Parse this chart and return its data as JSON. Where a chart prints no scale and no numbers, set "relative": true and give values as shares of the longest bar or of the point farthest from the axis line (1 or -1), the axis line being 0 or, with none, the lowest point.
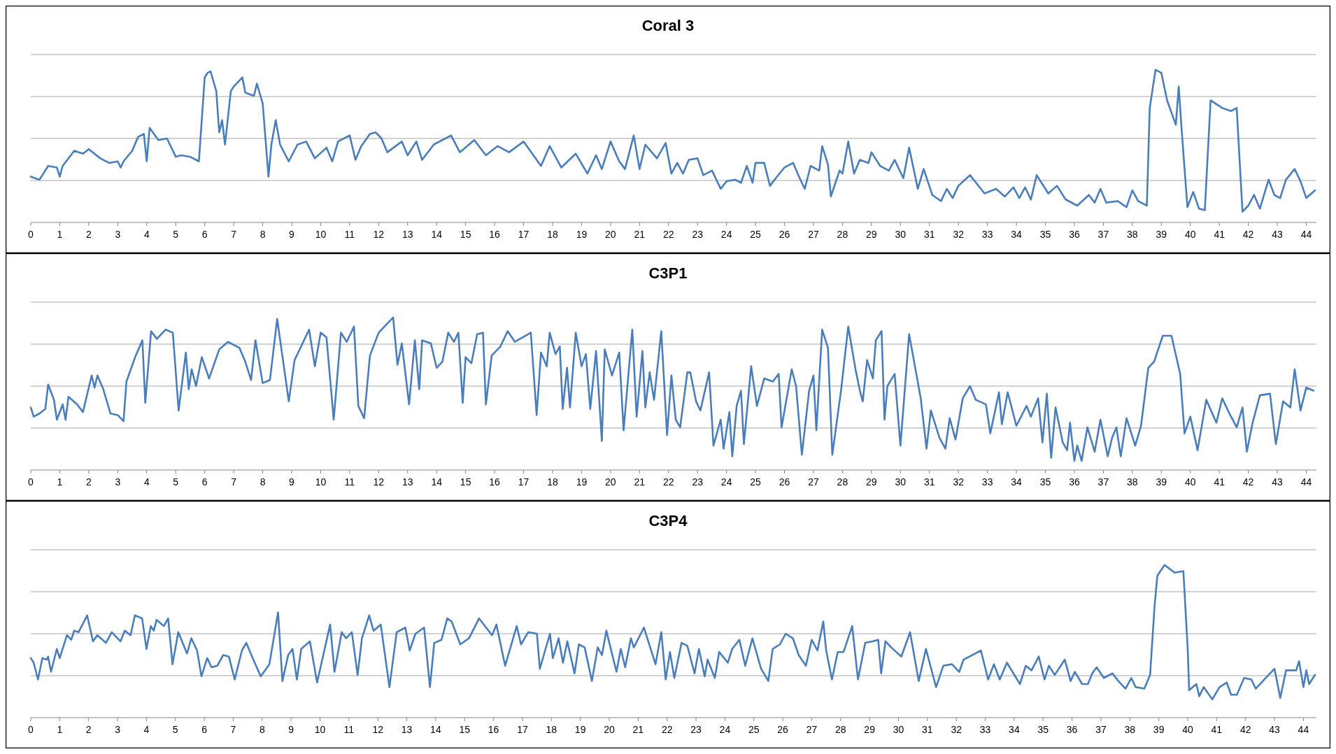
{
  "chart_data": [
    {
      "type": "line",
      "title": "Coral 3",
      "relative": true,
      "grid": "y",
      "color": "#4a7ebb",
      "xlim": [
        0,
        44.35
      ],
      "xticks": [
        0,
        1,
        2,
        3,
        4,
        5,
        6,
        7,
        8,
        9,
        10,
        11,
        12,
        13,
        14,
        15,
        16,
        17,
        18,
        19,
        20,
        21,
        22,
        23,
        24,
        25,
        26,
        27,
        28,
        29,
        30,
        31,
        32,
        33,
        34,
        35,
        36,
        37,
        38,
        39,
        40,
        41,
        42,
        43,
        44
      ],
      "x": [
        0,
        0.3,
        0.6,
        0.9,
        1.0,
        1.1,
        1.5,
        1.8,
        2.0,
        2.4,
        2.7,
        3.0,
        3.1,
        3.2,
        3.5,
        3.7,
        3.9,
        4.0,
        4.1,
        4.4,
        4.7,
        5.0,
        5.2,
        5.5,
        5.8,
        6.0,
        6.1,
        6.2,
        6.4,
        6.5,
        6.6,
        6.7,
        6.9,
        7.0,
        7.3,
        7.4,
        7.7,
        7.8,
        8.0,
        8.2,
        8.3,
        8.45,
        8.6,
        8.9,
        9.2,
        9.5,
        9.8,
        10.2,
        10.4,
        10.6,
        11.0,
        11.2,
        11.4,
        11.7,
        11.9,
        12.1,
        12.3,
        12.8,
        13.0,
        13.3,
        13.5,
        13.9,
        14.5,
        14.8,
        15.3,
        15.7,
        16.1,
        16.5,
        17.0,
        17.6,
        17.9,
        18.3,
        18.8,
        19.2,
        19.5,
        19.7,
        20.0,
        20.3,
        20.5,
        20.8,
        21.0,
        21.2,
        21.6,
        21.9,
        22.1,
        22.3,
        22.5,
        22.7,
        23.0,
        23.2,
        23.5,
        23.8,
        24.0,
        24.3,
        24.5,
        24.7,
        24.9,
        25.0,
        25.3,
        25.5,
        25.7,
        26.0,
        26.3,
        26.5,
        26.7,
        26.9,
        27.2,
        27.3,
        27.5,
        27.6,
        27.9,
        28.0,
        28.2,
        28.4,
        28.6,
        28.9,
        29.0,
        29.3,
        29.6,
        29.8,
        30.1,
        30.3,
        30.6,
        30.8,
        31.1,
        31.4,
        31.6,
        31.8,
        32.0,
        32.4,
        32.9,
        33.3,
        33.6,
        33.9,
        34.1,
        34.3,
        34.5,
        34.7,
        35.1,
        35.4,
        35.7,
        36.1,
        36.5,
        36.7,
        36.9,
        37.1,
        37.5,
        37.8,
        38.0,
        38.2,
        38.5,
        38.6,
        38.8,
        39.0,
        39.2,
        39.5,
        39.6,
        39.7,
        39.9,
        40.1,
        40.3,
        40.5,
        40.7,
        41.1,
        41.4,
        41.6,
        41.8,
        42.0,
        42.2,
        42.4,
        42.7,
        42.9,
        43.1,
        43.3,
        43.6,
        43.8,
        44.0,
        44.3
      ],
      "values": [
        0.3,
        0.28,
        0.37,
        0.36,
        0.3,
        0.37,
        0.47,
        0.45,
        0.48,
        0.42,
        0.39,
        0.4,
        0.36,
        0.4,
        0.47,
        0.56,
        0.58,
        0.4,
        0.62,
        0.54,
        0.55,
        0.43,
        0.44,
        0.43,
        0.4,
        0.95,
        0.98,
        0.99,
        0.86,
        0.59,
        0.67,
        0.51,
        0.86,
        0.89,
        0.95,
        0.85,
        0.83,
        0.91,
        0.78,
        0.3,
        0.51,
        0.67,
        0.51,
        0.4,
        0.51,
        0.53,
        0.42,
        0.49,
        0.4,
        0.53,
        0.57,
        0.41,
        0.5,
        0.58,
        0.59,
        0.55,
        0.46,
        0.53,
        0.44,
        0.53,
        0.41,
        0.51,
        0.57,
        0.46,
        0.54,
        0.44,
        0.5,
        0.46,
        0.53,
        0.37,
        0.5,
        0.36,
        0.45,
        0.32,
        0.44,
        0.35,
        0.53,
        0.4,
        0.35,
        0.57,
        0.35,
        0.51,
        0.42,
        0.52,
        0.32,
        0.39,
        0.32,
        0.41,
        0.42,
        0.31,
        0.34,
        0.22,
        0.27,
        0.28,
        0.26,
        0.37,
        0.26,
        0.39,
        0.39,
        0.24,
        0.29,
        0.36,
        0.39,
        0.3,
        0.22,
        0.37,
        0.34,
        0.5,
        0.38,
        0.17,
        0.34,
        0.32,
        0.53,
        0.32,
        0.41,
        0.39,
        0.46,
        0.37,
        0.34,
        0.41,
        0.29,
        0.49,
        0.22,
        0.35,
        0.18,
        0.14,
        0.22,
        0.16,
        0.24,
        0.31,
        0.19,
        0.22,
        0.17,
        0.23,
        0.16,
        0.23,
        0.15,
        0.31,
        0.19,
        0.24,
        0.15,
        0.11,
        0.18,
        0.13,
        0.22,
        0.13,
        0.14,
        0.1,
        0.21,
        0.14,
        0.11,
        0.75,
        1,
        0.98,
        0.8,
        0.64,
        0.89,
        0.61,
        0.1,
        0.2,
        0.09,
        0.08,
        0.8,
        0.75,
        0.73,
        0.75,
        0.07,
        0.11,
        0.18,
        0.09,
        0.28,
        0.18,
        0.16,
        0.28,
        0.35,
        0.27,
        0.16,
        0.21
      ]
    },
    {
      "type": "line",
      "title": "C3P1",
      "relative": true,
      "grid": "y",
      "color": "#4a7ebb",
      "xlim": [
        0,
        44.35
      ],
      "xticks": [
        0,
        1,
        2,
        3,
        4,
        5,
        6,
        7,
        8,
        9,
        10,
        11,
        12,
        13,
        14,
        15,
        16,
        17,
        18,
        19,
        20,
        21,
        22,
        23,
        24,
        25,
        26,
        27,
        28,
        29,
        30,
        31,
        32,
        33,
        34,
        35,
        36,
        37,
        38,
        39,
        40,
        41,
        42,
        43,
        44
      ],
      "x": [
        0,
        0.1,
        0.3,
        0.5,
        0.6,
        0.8,
        0.9,
        1.1,
        1.2,
        1.3,
        1.6,
        1.8,
        2.1,
        2.2,
        2.3,
        2.5,
        2.75,
        3.0,
        3.2,
        3.3,
        3.6,
        3.85,
        3.95,
        4.15,
        4.35,
        4.65,
        4.9,
        5.1,
        5.35,
        5.45,
        5.55,
        5.7,
        5.9,
        6.15,
        6.5,
        6.8,
        7.2,
        7.4,
        7.6,
        7.75,
        8.0,
        8.25,
        8.5,
        8.9,
        9.1,
        9.6,
        9.8,
        10.0,
        10.2,
        10.45,
        10.7,
        10.9,
        11.15,
        11.3,
        11.5,
        11.7,
        12.0,
        12.5,
        12.65,
        12.8,
        13.05,
        13.25,
        13.4,
        13.5,
        13.8,
        14.0,
        14.2,
        14.4,
        14.6,
        14.75,
        14.9,
        15.0,
        15.2,
        15.4,
        15.6,
        15.7,
        15.9,
        16.2,
        16.45,
        16.7,
        17.25,
        17.45,
        17.6,
        17.8,
        17.9,
        18.1,
        18.25,
        18.35,
        18.5,
        18.6,
        18.8,
        19.0,
        19.15,
        19.3,
        19.5,
        19.7,
        19.8,
        20.05,
        20.3,
        20.45,
        20.75,
        20.9,
        21.1,
        21.2,
        21.35,
        21.5,
        21.75,
        21.95,
        22.1,
        22.25,
        22.4,
        22.65,
        22.75,
        22.95,
        23.1,
        23.4,
        23.55,
        23.8,
        23.9,
        24.1,
        24.2,
        24.35,
        24.5,
        24.6,
        24.85,
        25.05,
        25.3,
        25.6,
        25.8,
        25.9,
        26.25,
        26.4,
        26.6,
        26.85,
        27.0,
        27.1,
        27.3,
        27.5,
        27.65,
        27.95,
        28.2,
        28.45,
        28.6,
        28.7,
        28.85,
        29.05,
        29.15,
        29.35,
        29.45,
        29.55,
        29.8,
        30.0,
        30.3,
        30.5,
        30.7,
        30.9,
        31.05,
        31.35,
        31.55,
        31.7,
        31.9,
        32.15,
        32.4,
        32.6,
        32.95,
        33.1,
        33.4,
        33.5,
        33.7,
        34.0,
        34.35,
        34.5,
        34.75,
        34.9,
        35.05,
        35.2,
        35.35,
        35.6,
        35.75,
        35.85,
        36.0,
        36.1,
        36.25,
        36.45,
        36.7,
        36.9,
        37.15,
        37.3,
        37.45,
        37.6,
        37.8,
        38.1,
        38.3,
        38.55,
        38.75,
        39.05,
        39.35,
        39.65,
        39.8,
        40.0,
        40.25,
        40.55,
        40.9,
        41.1,
        41.35,
        41.6,
        41.8,
        41.95,
        42.15,
        42.4,
        42.75,
        42.95,
        43.2,
        43.45,
        43.6,
        43.8,
        44.0,
        44.25
      ],
      "values": [
        0.41,
        0.35,
        0.37,
        0.4,
        0.56,
        0.46,
        0.33,
        0.43,
        0.33,
        0.48,
        0.43,
        0.38,
        0.62,
        0.54,
        0.62,
        0.53,
        0.37,
        0.36,
        0.32,
        0.58,
        0.74,
        0.85,
        0.44,
        0.91,
        0.86,
        0.92,
        0.9,
        0.39,
        0.77,
        0.53,
        0.66,
        0.55,
        0.74,
        0.6,
        0.79,
        0.84,
        0.8,
        0.71,
        0.59,
        0.85,
        0.57,
        0.59,
        0.99,
        0.45,
        0.72,
        0.92,
        0.68,
        0.9,
        0.87,
        0.33,
        0.9,
        0.84,
        0.94,
        0.42,
        0.34,
        0.75,
        0.9,
        1,
        0.69,
        0.83,
        0.43,
        0.85,
        0.53,
        0.85,
        0.83,
        0.67,
        0.71,
        0.9,
        0.84,
        0.9,
        0.44,
        0.74,
        0.7,
        0.89,
        0.9,
        0.43,
        0.75,
        0.81,
        0.91,
        0.84,
        0.9,
        0.36,
        0.77,
        0.68,
        0.9,
        0.76,
        0.81,
        0.4,
        0.67,
        0.41,
        0.9,
        0.68,
        0.76,
        0.4,
        0.78,
        0.19,
        0.79,
        0.62,
        0.77,
        0.26,
        0.92,
        0.35,
        0.78,
        0.41,
        0.64,
        0.46,
        0.91,
        0.23,
        0.62,
        0.33,
        0.28,
        0.64,
        0.64,
        0.45,
        0.39,
        0.64,
        0.16,
        0.33,
        0.14,
        0.38,
        0.09,
        0.42,
        0.52,
        0.17,
        0.68,
        0.42,
        0.6,
        0.58,
        0.63,
        0.28,
        0.66,
        0.55,
        0.1,
        0.52,
        0.62,
        0.26,
        0.92,
        0.8,
        0.1,
        0.52,
        0.94,
        0.66,
        0.52,
        0.45,
        0.72,
        0.6,
        0.85,
        0.91,
        0.33,
        0.55,
        0.63,
        0.16,
        0.89,
        0.68,
        0.47,
        0.14,
        0.39,
        0.21,
        0.14,
        0.34,
        0.2,
        0.47,
        0.55,
        0.46,
        0.43,
        0.24,
        0.51,
        0.3,
        0.51,
        0.29,
        0.42,
        0.35,
        0.47,
        0.18,
        0.5,
        0.08,
        0.41,
        0.18,
        0.13,
        0.31,
        0.06,
        0.16,
        0.06,
        0.28,
        0.12,
        0.33,
        0.09,
        0.21,
        0.28,
        0.09,
        0.34,
        0.16,
        0.29,
        0.67,
        0.71,
        0.88,
        0.88,
        0.63,
        0.24,
        0.35,
        0.13,
        0.46,
        0.31,
        0.47,
        0.37,
        0.28,
        0.41,
        0.12,
        0.31,
        0.49,
        0.5,
        0.17,
        0.45,
        0.41,
        0.66,
        0.39,
        0.54,
        0.52
      ]
    },
    {
      "type": "line",
      "title": "C3P4",
      "relative": true,
      "grid": "y",
      "color": "#4a7ebb",
      "xlim": [
        0,
        44.45
      ],
      "xticks": [
        0,
        1,
        2,
        3,
        4,
        5,
        6,
        7,
        8,
        9,
        10,
        11,
        12,
        13,
        14,
        15,
        16,
        17,
        18,
        19,
        20,
        21,
        22,
        23,
        24,
        25,
        26,
        27,
        28,
        29,
        30,
        31,
        32,
        33,
        34,
        35,
        36,
        37,
        38,
        39,
        40,
        41,
        42,
        43,
        44
      ],
      "x": [
        0,
        0.1,
        0.25,
        0.4,
        0.55,
        0.6,
        0.7,
        0.9,
        1.0,
        1.25,
        1.4,
        1.5,
        1.65,
        1.95,
        2.15,
        2.3,
        2.6,
        2.8,
        3.1,
        3.25,
        3.45,
        3.6,
        3.85,
        4.0,
        4.15,
        4.25,
        4.35,
        4.6,
        4.75,
        4.9,
        5.1,
        5.4,
        5.55,
        5.75,
        5.9,
        6.1,
        6.25,
        6.45,
        6.65,
        6.85,
        7.05,
        7.3,
        7.45,
        7.65,
        7.95,
        8.25,
        8.55,
        8.7,
        8.9,
        9.05,
        9.2,
        9.35,
        9.65,
        9.9,
        10.35,
        10.5,
        10.75,
        10.9,
        11.1,
        11.3,
        11.45,
        11.7,
        11.85,
        12.1,
        12.4,
        12.65,
        12.95,
        13.1,
        13.3,
        13.6,
        13.8,
        13.95,
        14.2,
        14.4,
        14.55,
        14.85,
        15.15,
        15.5,
        15.95,
        16.1,
        16.4,
        16.8,
        16.95,
        17.2,
        17.5,
        17.6,
        17.95,
        18.05,
        18.25,
        18.4,
        18.55,
        18.8,
        18.95,
        19.15,
        19.4,
        19.6,
        19.75,
        19.9,
        20.25,
        20.4,
        20.55,
        20.75,
        20.85,
        21.2,
        21.6,
        21.8,
        21.95,
        22.1,
        22.25,
        22.5,
        22.7,
        22.95,
        23.1,
        23.3,
        23.4,
        23.65,
        23.8,
        24.1,
        24.25,
        24.5,
        24.7,
        24.95,
        25.25,
        25.5,
        25.65,
        25.9,
        26.1,
        26.35,
        26.55,
        26.8,
        27.0,
        27.2,
        27.4,
        27.5,
        27.7,
        27.9,
        28.1,
        28.4,
        28.6,
        28.85,
        29.1,
        29.3,
        29.4,
        29.55,
        29.75,
        30.1,
        30.4,
        30.7,
        30.95,
        31.3,
        31.55,
        31.85,
        32.1,
        32.25,
        32.55,
        32.85,
        33.1,
        33.3,
        33.5,
        33.75,
        34.2,
        34.4,
        34.6,
        34.85,
        35.05,
        35.2,
        35.4,
        35.75,
        35.95,
        36.1,
        36.35,
        36.55,
        36.7,
        36.85,
        37.1,
        37.4,
        37.6,
        37.85,
        38.05,
        38.2,
        38.5,
        38.7,
        38.85,
        38.95,
        39.2,
        39.55,
        39.85,
        40.0,
        40.05,
        40.3,
        40.4,
        40.55,
        40.85,
        41.1,
        41.35,
        41.5,
        41.7,
        41.95,
        42.2,
        42.35,
        42.65,
        43.0,
        43.2,
        43.4,
        43.75,
        43.85,
        44.0,
        44.1,
        44.2,
        44.4
      ],
      "values": [
        0.39,
        0.36,
        0.25,
        0.39,
        0.38,
        0.4,
        0.3,
        0.45,
        0.39,
        0.54,
        0.51,
        0.57,
        0.56,
        0.67,
        0.5,
        0.54,
        0.49,
        0.56,
        0.5,
        0.57,
        0.54,
        0.67,
        0.65,
        0.45,
        0.6,
        0.57,
        0.64,
        0.6,
        0.65,
        0.35,
        0.56,
        0.42,
        0.52,
        0.44,
        0.27,
        0.39,
        0.33,
        0.34,
        0.41,
        0.4,
        0.25,
        0.44,
        0.49,
        0.4,
        0.27,
        0.35,
        0.69,
        0.24,
        0.41,
        0.45,
        0.25,
        0.45,
        0.5,
        0.23,
        0.61,
        0.3,
        0.56,
        0.52,
        0.56,
        0.28,
        0.52,
        0.67,
        0.57,
        0.61,
        0.2,
        0.56,
        0.59,
        0.44,
        0.55,
        0.59,
        0.2,
        0.49,
        0.51,
        0.65,
        0.63,
        0.48,
        0.52,
        0.65,
        0.54,
        0.61,
        0.34,
        0.6,
        0.48,
        0.56,
        0.55,
        0.32,
        0.55,
        0.39,
        0.52,
        0.36,
        0.5,
        0.29,
        0.48,
        0.46,
        0.24,
        0.46,
        0.41,
        0.57,
        0.3,
        0.45,
        0.33,
        0.52,
        0.46,
        0.59,
        0.35,
        0.56,
        0.25,
        0.43,
        0.26,
        0.49,
        0.47,
        0.29,
        0.45,
        0.27,
        0.38,
        0.26,
        0.43,
        0.36,
        0.45,
        0.51,
        0.34,
        0.52,
        0.32,
        0.24,
        0.45,
        0.48,
        0.55,
        0.52,
        0.41,
        0.34,
        0.51,
        0.44,
        0.63,
        0.44,
        0.25,
        0.43,
        0.43,
        0.6,
        0.25,
        0.49,
        0.5,
        0.51,
        0.29,
        0.5,
        0.46,
        0.4,
        0.56,
        0.24,
        0.45,
        0.2,
        0.34,
        0.35,
        0.3,
        0.38,
        0.41,
        0.44,
        0.25,
        0.35,
        0.25,
        0.36,
        0.22,
        0.34,
        0.31,
        0.4,
        0.25,
        0.34,
        0.28,
        0.38,
        0.24,
        0.3,
        0.22,
        0.22,
        0.29,
        0.33,
        0.26,
        0.29,
        0.24,
        0.19,
        0.26,
        0.2,
        0.19,
        0.28,
        0.72,
        0.93,
        1,
        0.95,
        0.96,
        0.45,
        0.18,
        0.22,
        0.14,
        0.2,
        0.12,
        0.2,
        0.23,
        0.15,
        0.15,
        0.26,
        0.25,
        0.19,
        0.25,
        0.32,
        0.13,
        0.31,
        0.31,
        0.37,
        0.2,
        0.31,
        0.22,
        0.28
      ]
    }
  ]
}
